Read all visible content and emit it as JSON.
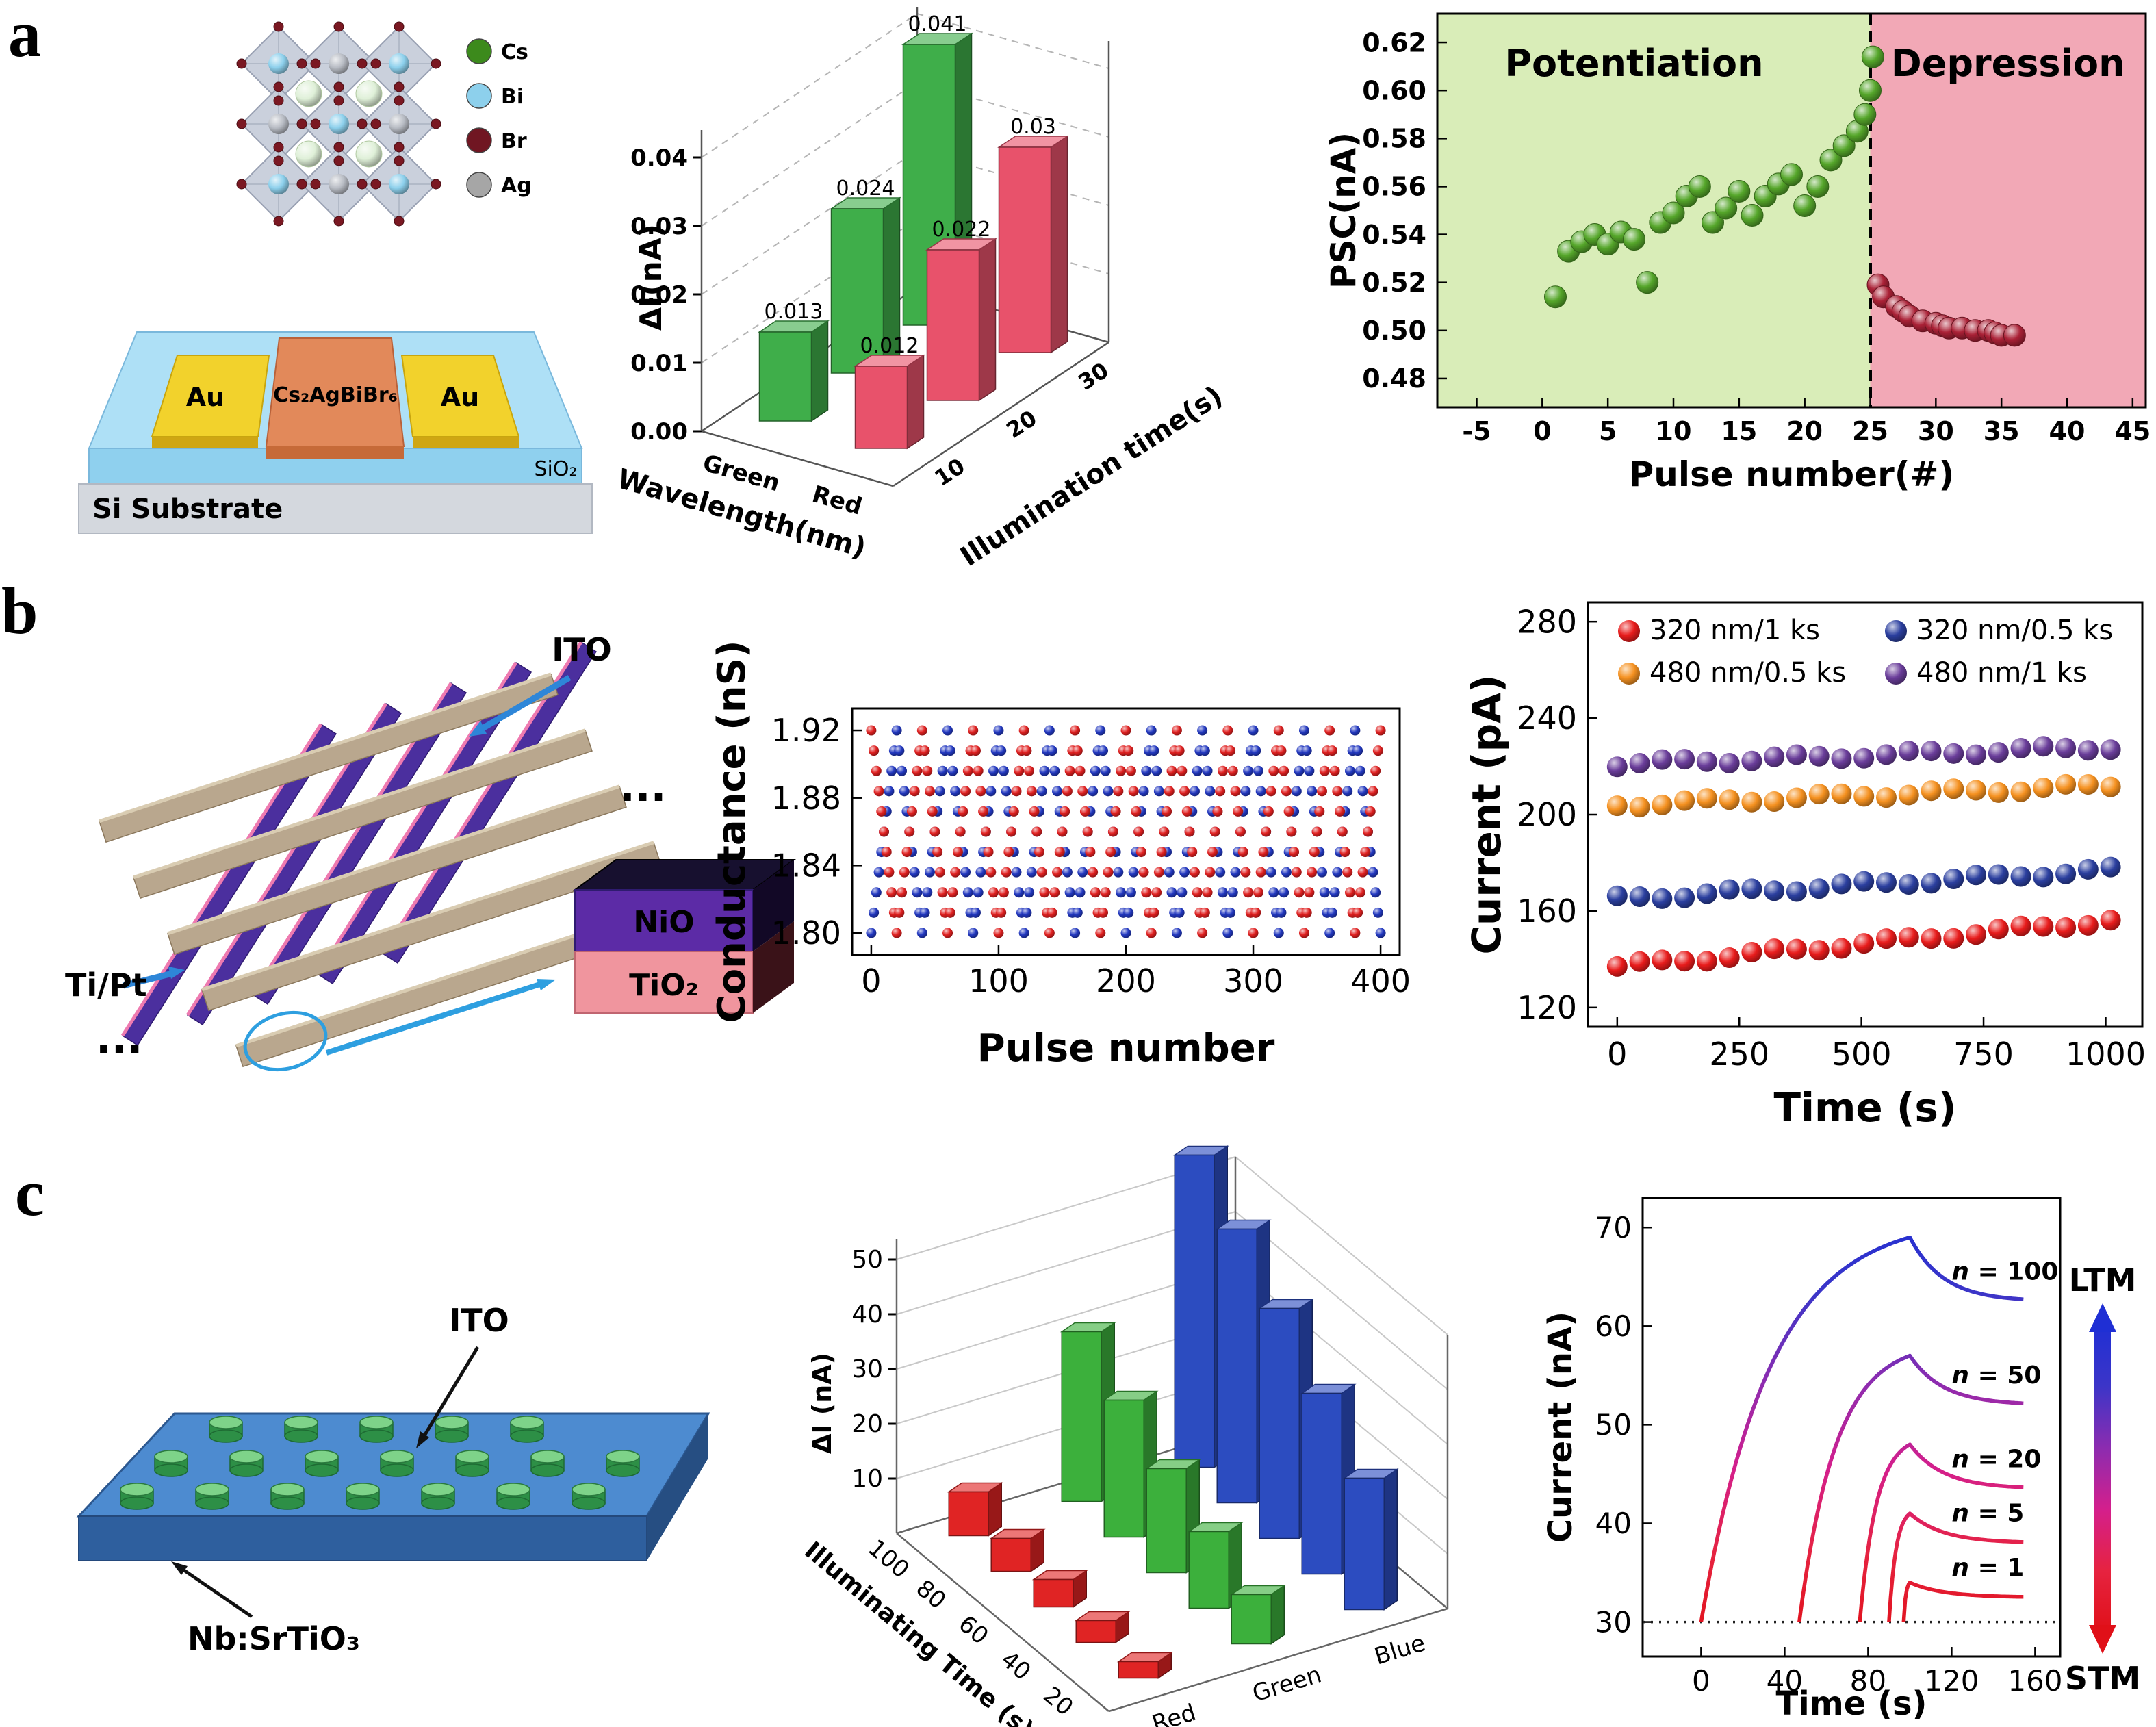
{
  "figure": {
    "panel_labels": {
      "a": "a",
      "b": "b",
      "c": "c"
    }
  },
  "schematic_a": {
    "legend": {
      "cs": {
        "label": "Cs",
        "color": "#3c8a1c"
      },
      "bi": {
        "label": "Bi",
        "color": "#8dd0ec"
      },
      "br": {
        "label": "Br",
        "color": "#701622"
      },
      "ag": {
        "label": "Ag",
        "color": "#a6a6a6"
      }
    },
    "au_left": "Au",
    "au_right": "Au",
    "channel": "Cs₂AgBiBr₆",
    "sio2": "SiO₂",
    "substrate": "Si Substrate"
  },
  "schematic_b": {
    "ito": "ITO",
    "tipt": "Ti/Pt",
    "nio": "NiO",
    "tio2": "TiO₂",
    "dots": "...",
    "dots2": "..."
  },
  "schematic_c": {
    "ito": "ITO",
    "substrate": "Nb:SrTiO₃"
  },
  "chart_data": [
    {
      "id": "a-bar3d",
      "type": "bar",
      "projection": "3d",
      "zlabel": "ΔI(nA)",
      "xlabel": "Wavelength(nm)",
      "ylabel": "Illumination time(s)",
      "x_categories": [
        "Green",
        "Red"
      ],
      "y_categories": [
        "10",
        "20",
        "30"
      ],
      "zticks": [
        "0.00",
        "0.01",
        "0.02",
        "0.03",
        "0.04"
      ],
      "zlim": [
        0,
        0.044
      ],
      "series": [
        {
          "name": "Green",
          "color": "#3fae4a",
          "values": [
            0.013,
            0.024,
            0.041
          ],
          "labels": [
            "0.013",
            "0.024",
            "0.041"
          ]
        },
        {
          "name": "Red",
          "color": "#e8526b",
          "values": [
            0.012,
            0.022,
            0.03
          ],
          "labels": [
            "0.012",
            "0.022",
            "0.03"
          ]
        }
      ]
    },
    {
      "id": "a-psc",
      "type": "scatter",
      "xlabel": "Pulse number(#)",
      "ylabel": "PSC(nA)",
      "xlim": [
        -8,
        46
      ],
      "ylim": [
        0.468,
        0.632
      ],
      "xticks": [
        -5,
        0,
        5,
        10,
        15,
        20,
        25,
        30,
        35,
        40,
        45
      ],
      "yticks": [
        "0.48",
        "0.50",
        "0.52",
        "0.54",
        "0.56",
        "0.58",
        "0.60",
        "0.62"
      ],
      "divider_x": 25,
      "regions": [
        {
          "label": "Potentiation",
          "fill": "#d9edb8",
          "text_color": "#3a9a30",
          "x_range": [
            -8,
            25
          ]
        },
        {
          "label": "Depression",
          "fill": "#f2a8b6",
          "text_color": "#c22848",
          "x_range": [
            25,
            46
          ]
        }
      ],
      "series": [
        {
          "name": "Potentiation",
          "color": "#55a62a",
          "points": [
            [
              1,
              0.514
            ],
            [
              2,
              0.533
            ],
            [
              3,
              0.537
            ],
            [
              4,
              0.54
            ],
            [
              5,
              0.536
            ],
            [
              6,
              0.541
            ],
            [
              7,
              0.538
            ],
            [
              8,
              0.52
            ],
            [
              9,
              0.545
            ],
            [
              10,
              0.549
            ],
            [
              11,
              0.556
            ],
            [
              12,
              0.56
            ],
            [
              13,
              0.545
            ],
            [
              14,
              0.551
            ],
            [
              15,
              0.558
            ],
            [
              16,
              0.548
            ],
            [
              17,
              0.556
            ],
            [
              18,
              0.561
            ],
            [
              19,
              0.565
            ],
            [
              20,
              0.552
            ],
            [
              21,
              0.56
            ],
            [
              22,
              0.571
            ],
            [
              23,
              0.577
            ],
            [
              24,
              0.583
            ],
            [
              24.6,
              0.59
            ],
            [
              25,
              0.6
            ],
            [
              25.2,
              0.614
            ]
          ]
        },
        {
          "name": "Depression",
          "color": "#aa2136",
          "points": [
            [
              25.6,
              0.519
            ],
            [
              26,
              0.514
            ],
            [
              27,
              0.51
            ],
            [
              27.5,
              0.508
            ],
            [
              28,
              0.506
            ],
            [
              29,
              0.504
            ],
            [
              30,
              0.503
            ],
            [
              30.5,
              0.502
            ],
            [
              31,
              0.501
            ],
            [
              32,
              0.501
            ],
            [
              33,
              0.5
            ],
            [
              34,
              0.5
            ],
            [
              34.5,
              0.499
            ],
            [
              35,
              0.498
            ],
            [
              36,
              0.498
            ]
          ]
        }
      ]
    },
    {
      "id": "b-conductance",
      "type": "scatter",
      "xlabel": "Pulse number",
      "ylabel": "Conductance (nS)",
      "xlim": [
        -15,
        415
      ],
      "ylim": [
        1.787,
        1.933
      ],
      "xticks": [
        0,
        100,
        200,
        300,
        400
      ],
      "yticks": [
        "1.80",
        "1.84",
        "1.88",
        "1.92"
      ],
      "waveform": {
        "shape": "triangle",
        "total_pulses": 400,
        "pulses_per_cycle": 40,
        "min": 1.8,
        "max": 1.92,
        "series": [
          {
            "name": "cycle set blue",
            "color": "#2238c0",
            "phase_offset": 0
          },
          {
            "name": "cycle set red",
            "color": "#e02020",
            "phase_offset": 20
          }
        ]
      }
    },
    {
      "id": "b-current",
      "type": "scatter",
      "xlabel": "Time (s)",
      "ylabel": "Current (pA)",
      "xlim": [
        -60,
        1075
      ],
      "ylim": [
        112,
        288
      ],
      "xticks": [
        0,
        250,
        500,
        750,
        1000
      ],
      "yticks": [
        120,
        160,
        200,
        240,
        280
      ],
      "legend": [
        {
          "label": "320 nm/1 ks",
          "color": "#e81c1c"
        },
        {
          "label": "480 nm/0.5 ks",
          "color": "#f59120"
        },
        {
          "label": "320 nm/0.5 ks",
          "color": "#2b3f9f"
        },
        {
          "label": "480 nm/1 ks",
          "color": "#6a3d9a"
        }
      ],
      "series": [
        {
          "name": "320 nm/1 ks",
          "color": "#e81c1c",
          "time_range": [
            0,
            1010
          ],
          "start": 137,
          "end": 156,
          "count": 23
        },
        {
          "name": "320 nm/0.5 ks",
          "color": "#2b3f9f",
          "time_range": [
            0,
            1010
          ],
          "start": 165,
          "end": 177,
          "count": 23
        },
        {
          "name": "480 nm/0.5 ks",
          "color": "#f59120",
          "time_range": [
            0,
            1010
          ],
          "start": 204,
          "end": 212,
          "count": 23
        },
        {
          "name": "480 nm/1 ks",
          "color": "#6a3d9a",
          "time_range": [
            0,
            1010
          ],
          "start": 221,
          "end": 228,
          "count": 23
        }
      ]
    },
    {
      "id": "c-bar3d",
      "type": "bar",
      "projection": "3d",
      "zlabel": "ΔI (nA)",
      "xlabel": "Illuminating Time (s)",
      "ylabel": "",
      "x_categories": [
        "20",
        "40",
        "60",
        "80",
        "100"
      ],
      "y_categories": [
        "Red",
        "Green",
        "Blue"
      ],
      "zticks": [
        10,
        20,
        30,
        40,
        50
      ],
      "series": [
        {
          "name": "Red",
          "color": "#e02424",
          "values": [
            3,
            4,
            5,
            6,
            8
          ]
        },
        {
          "name": "Green",
          "color": "#3cb03c",
          "values": [
            9,
            14,
            19,
            25,
            31
          ]
        },
        {
          "name": "Blue",
          "color": "#2c4cc0",
          "values": [
            24,
            33,
            42,
            50,
            57
          ]
        }
      ]
    },
    {
      "id": "c-current",
      "type": "line",
      "xlabel": "Time (s)",
      "ylabel": "Current (nA)",
      "xlim": [
        -28,
        172
      ],
      "ylim": [
        26.5,
        73
      ],
      "xticks": [
        0,
        40,
        80,
        120,
        160
      ],
      "yticks": [
        30,
        40,
        50,
        60,
        70
      ],
      "baseline": 30,
      "ltm_label": "LTM",
      "stm_label": "STM",
      "series": [
        {
          "label": "n = 100",
          "t_on": 0,
          "t_off": 100,
          "peak": 69,
          "plateau": 62.5
        },
        {
          "label": "n = 50",
          "t_on": 47,
          "t_off": 100,
          "peak": 57,
          "plateau": 52
        },
        {
          "label": "n = 20",
          "t_on": 76,
          "t_off": 100,
          "peak": 48,
          "plateau": 43.5
        },
        {
          "label": "n = 5",
          "t_on": 90,
          "t_off": 100,
          "peak": 41,
          "plateau": 38
        },
        {
          "label": "n = 1",
          "t_on": 97,
          "t_off": 100,
          "peak": 34,
          "plateau": 32.5
        }
      ]
    }
  ]
}
